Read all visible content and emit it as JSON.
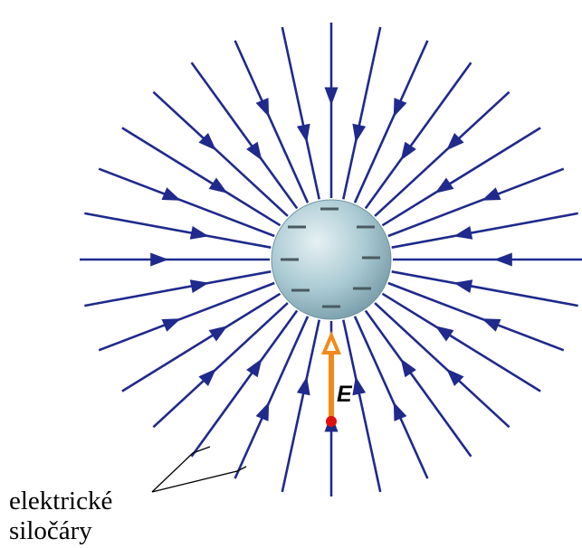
{
  "diagram": {
    "line_count": 32,
    "colors": {
      "field_line": "#1f2a8c",
      "sphere_light": "#e6f1f4",
      "sphere_mid": "#a9c9d2",
      "sphere_dark": "#6f95a2",
      "charge_mark": "#4a5a60",
      "vector": "#f08a1c",
      "vector_point": "#e01010",
      "text": "#000000"
    },
    "charge_sign": "–",
    "sphere_charges": 8,
    "vector_label": "E",
    "caption_line1": "elektrické",
    "caption_line2": "siločáry"
  }
}
